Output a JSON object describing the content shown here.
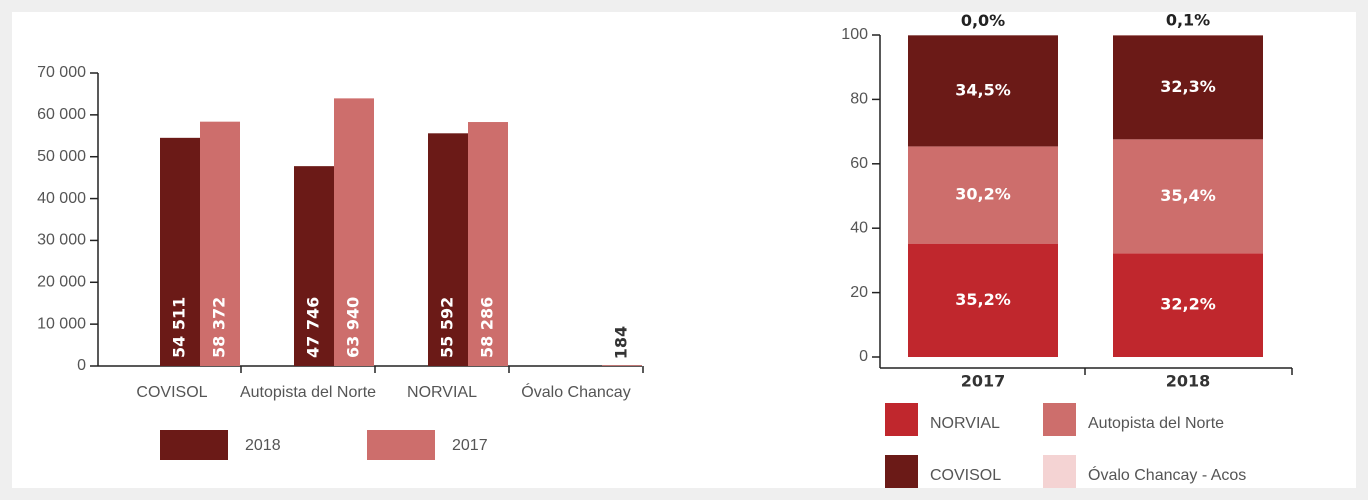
{
  "chart_data": [
    {
      "type": "bar",
      "categories": [
        "COVISOL",
        "Autopista del Norte",
        "NORVIAL",
        "Óvalo Chancay"
      ],
      "series": [
        {
          "name": "2018",
          "color": "#6b1a17",
          "values": [
            54511,
            47746,
            55592,
            null
          ],
          "value_labels": [
            "54 511",
            "47 746",
            "55 592",
            null
          ]
        },
        {
          "name": "2017",
          "color": "#cd6e6c",
          "values": [
            58372,
            63940,
            58286,
            184
          ],
          "value_labels": [
            "58 372",
            "63 940",
            "58 286",
            "184"
          ]
        }
      ],
      "ylim": [
        0,
        70000
      ],
      "yticks": [
        0,
        {
          "value": 10000,
          "label": "10 000"
        },
        {
          "value": 20000,
          "label": "20 000"
        },
        {
          "value": 30000,
          "label": "30 000"
        },
        {
          "value": 40000,
          "label": "40 000"
        },
        {
          "value": 50000,
          "label": "50 000"
        },
        {
          "value": 60000,
          "label": "60 000"
        },
        {
          "value": 70000,
          "label": "70 000"
        }
      ]
    },
    {
      "type": "stacked_bar",
      "categories": [
        "2017",
        "2018"
      ],
      "series": [
        {
          "name": "NORVIAL",
          "color": "#c0272d",
          "values": [
            35.2,
            32.2
          ],
          "value_labels": [
            "35,2%",
            "32,2%"
          ]
        },
        {
          "name": "Autopista del Norte",
          "color": "#cd6e6c",
          "values": [
            30.2,
            35.4
          ],
          "value_labels": [
            "30,2%",
            "35,4%"
          ]
        },
        {
          "name": "COVISOL",
          "color": "#6b1a17",
          "values": [
            34.5,
            32.3
          ],
          "value_labels": [
            "34,5%",
            "32,3%"
          ]
        },
        {
          "name": "Óvalo Chancay - Acos",
          "color": "#f4d3d3",
          "values": [
            0.0,
            0.1
          ],
          "value_labels": [
            "0,0%",
            "0,1%"
          ]
        }
      ],
      "ylim": [
        0,
        100
      ],
      "yticks": [
        0,
        20,
        40,
        60,
        80,
        100
      ]
    }
  ]
}
